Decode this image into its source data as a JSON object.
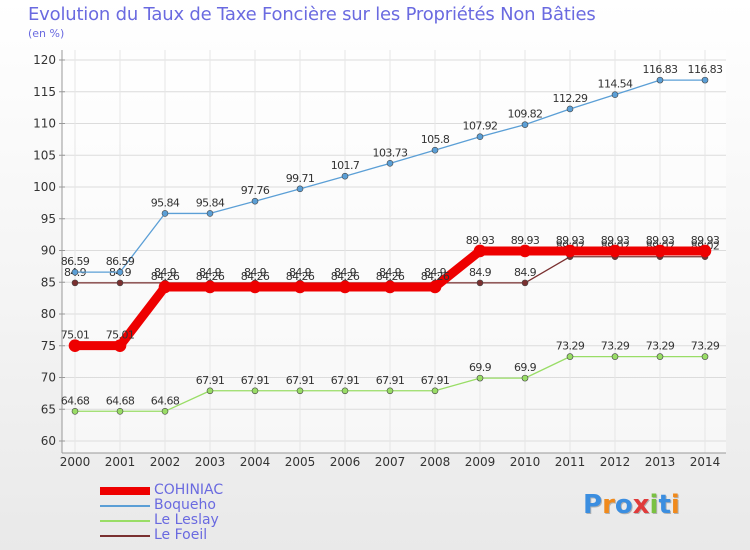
{
  "title": "Evolution du Taux de Taxe Foncière sur les Propriétés Non Bâties",
  "unit": "(en %)",
  "logo": {
    "text": "Proxiti",
    "colors": [
      "#3b8ee0",
      "#f08a1c",
      "#3b8ee0",
      "#e03b3b",
      "#7ac142",
      "#3b8ee0",
      "#f08a1c"
    ]
  },
  "chart_data": {
    "type": "line",
    "categories": [
      "2000",
      "2001",
      "2002",
      "2003",
      "2004",
      "2005",
      "2006",
      "2007",
      "2008",
      "2009",
      "2010",
      "2011",
      "2012",
      "2013",
      "2014"
    ],
    "ylim": [
      60,
      120
    ],
    "yticks": [
      "60",
      "65",
      "70",
      "75",
      "80",
      "85",
      "90",
      "95",
      "100",
      "105",
      "110",
      "115",
      "120"
    ],
    "grid": true,
    "legend_position": "bottom-left",
    "series": [
      {
        "name": "Le Foeil",
        "color": "#7a3030",
        "values": [
          84.9,
          84.9,
          84.9,
          84.9,
          84.9,
          84.9,
          84.9,
          84.9,
          84.9,
          84.9,
          84.9,
          89.02,
          89.02,
          89.02,
          89.02
        ],
        "labels": [
          "84.9",
          "84.9",
          "84.9",
          "84.9",
          "84.9",
          "84.9",
          "84.9",
          "84.9",
          "84.9",
          "84.9",
          "84.9",
          "89.02",
          "89.02",
          "89.02",
          "89.02"
        ]
      },
      {
        "name": "Le Leslay",
        "color": "#99dd66",
        "values": [
          64.68,
          64.68,
          64.68,
          67.91,
          67.91,
          67.91,
          67.91,
          67.91,
          67.91,
          69.9,
          69.9,
          73.29,
          73.29,
          73.29,
          73.29
        ],
        "labels": [
          "64.68",
          "64.68",
          "64.68",
          "67.91",
          "67.91",
          "67.91",
          "67.91",
          "67.91",
          "67.91",
          "69.9",
          "69.9",
          "73.29",
          "73.29",
          "73.29",
          "73.29"
        ]
      },
      {
        "name": "Boqueho",
        "color": "#5b9fd6",
        "values": [
          86.59,
          86.59,
          95.84,
          95.84,
          97.76,
          99.71,
          101.7,
          103.73,
          105.8,
          107.92,
          109.82,
          112.29,
          114.54,
          116.83,
          116.83
        ],
        "labels": [
          "86.59",
          "86.59",
          "95.84",
          "95.84",
          "97.76",
          "99.71",
          "101.7",
          "103.73",
          "105.8",
          "107.92",
          "109.82",
          "112.29",
          "114.54",
          "116.83",
          "116.83"
        ]
      },
      {
        "name": "COHINIAC",
        "color": "#ee0000",
        "values": [
          75.01,
          75.01,
          84.26,
          84.26,
          84.26,
          84.26,
          84.26,
          84.26,
          84.26,
          89.93,
          89.93,
          89.93,
          89.93,
          89.93,
          89.93
        ],
        "labels": [
          "75.01",
          "75.01",
          "84.26",
          "84.26",
          "84.26",
          "84.26",
          "84.26",
          "84.26",
          "84.26",
          "89.93",
          "89.93",
          "89.93",
          "89.93",
          "89.93",
          "89.93"
        ]
      }
    ],
    "legend_order": [
      "COHINIAC",
      "Boqueho",
      "Le Leslay",
      "Le Foeil"
    ]
  }
}
